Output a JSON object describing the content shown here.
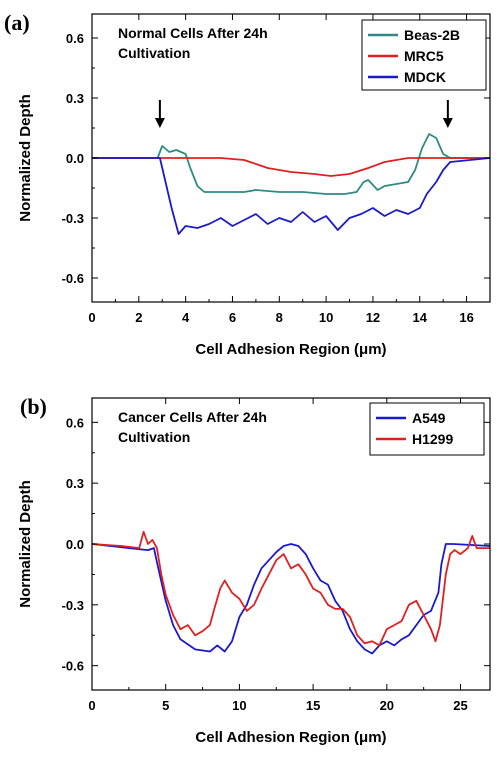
{
  "chart_data": [
    {
      "type": "line",
      "panel_label": "(a)",
      "annotation": [
        "Normal Cells After 24h",
        "Cultivation"
      ],
      "xlabel": "Cell Adhesion Region (μm)",
      "ylabel": "Normalized Depth",
      "xlim": [
        0,
        17
      ],
      "ylim": [
        -0.72,
        0.72
      ],
      "xticks": [
        "0",
        "2",
        "4",
        "6",
        "8",
        "10",
        "12",
        "14",
        "16"
      ],
      "yticks": [
        "0.6",
        "0.3",
        "0.0",
        "-0.3",
        "-0.6"
      ],
      "legend_position": "top-right",
      "arrows_x": [
        2.9,
        15.2
      ],
      "series": [
        {
          "name": "Beas-2B",
          "color": "#2e8b84",
          "points": [
            [
              0,
              0
            ],
            [
              2.8,
              0.0
            ],
            [
              3.0,
              0.06
            ],
            [
              3.3,
              0.03
            ],
            [
              3.6,
              0.04
            ],
            [
              4.0,
              0.02
            ],
            [
              4.2,
              -0.05
            ],
            [
              4.5,
              -0.14
            ],
            [
              4.8,
              -0.17
            ],
            [
              5.5,
              -0.17
            ],
            [
              6.5,
              -0.17
            ],
            [
              7.0,
              -0.16
            ],
            [
              8.0,
              -0.17
            ],
            [
              9.0,
              -0.17
            ],
            [
              10.0,
              -0.18
            ],
            [
              10.8,
              -0.18
            ],
            [
              11.3,
              -0.17
            ],
            [
              11.6,
              -0.12
            ],
            [
              11.8,
              -0.11
            ],
            [
              12.2,
              -0.16
            ],
            [
              12.5,
              -0.14
            ],
            [
              13.0,
              -0.13
            ],
            [
              13.5,
              -0.12
            ],
            [
              13.8,
              -0.06
            ],
            [
              14.1,
              0.05
            ],
            [
              14.4,
              0.12
            ],
            [
              14.7,
              0.1
            ],
            [
              15.0,
              0.02
            ],
            [
              15.3,
              0.0
            ],
            [
              17,
              0.0
            ]
          ]
        },
        {
          "name": "MRC5",
          "color": "#e02020",
          "points": [
            [
              0,
              0
            ],
            [
              4.5,
              0.0
            ],
            [
              5.5,
              0.0
            ],
            [
              6.5,
              -0.01
            ],
            [
              7.5,
              -0.05
            ],
            [
              8.5,
              -0.07
            ],
            [
              9.5,
              -0.08
            ],
            [
              10.2,
              -0.09
            ],
            [
              11.0,
              -0.08
            ],
            [
              11.8,
              -0.05
            ],
            [
              12.5,
              -0.02
            ],
            [
              13.5,
              0.0
            ],
            [
              17,
              0.0
            ]
          ]
        },
        {
          "name": "MDCK",
          "color": "#1a1acc",
          "points": [
            [
              0,
              0
            ],
            [
              2.9,
              0.0
            ],
            [
              3.1,
              -0.1
            ],
            [
              3.4,
              -0.25
            ],
            [
              3.7,
              -0.38
            ],
            [
              4.0,
              -0.34
            ],
            [
              4.5,
              -0.35
            ],
            [
              5.0,
              -0.33
            ],
            [
              5.5,
              -0.3
            ],
            [
              6.0,
              -0.34
            ],
            [
              6.5,
              -0.31
            ],
            [
              7.0,
              -0.28
            ],
            [
              7.5,
              -0.33
            ],
            [
              8.0,
              -0.3
            ],
            [
              8.5,
              -0.32
            ],
            [
              9.0,
              -0.27
            ],
            [
              9.5,
              -0.32
            ],
            [
              10.0,
              -0.29
            ],
            [
              10.5,
              -0.36
            ],
            [
              11.0,
              -0.3
            ],
            [
              11.5,
              -0.28
            ],
            [
              12.0,
              -0.25
            ],
            [
              12.5,
              -0.29
            ],
            [
              13.0,
              -0.26
            ],
            [
              13.5,
              -0.28
            ],
            [
              14.0,
              -0.25
            ],
            [
              14.3,
              -0.18
            ],
            [
              14.7,
              -0.12
            ],
            [
              15.0,
              -0.06
            ],
            [
              15.3,
              -0.02
            ],
            [
              17,
              0.0
            ]
          ]
        }
      ]
    },
    {
      "type": "line",
      "panel_label": "(b)",
      "annotation": [
        "Cancer Cells After 24h",
        "Cultivation"
      ],
      "xlabel": "Cell Adhesion Region (μm)",
      "ylabel": "Normalized Depth",
      "xlim": [
        0,
        27
      ],
      "ylim": [
        -0.72,
        0.72
      ],
      "xticks": [
        "0",
        "5",
        "10",
        "15",
        "20",
        "25"
      ],
      "yticks": [
        "0.6",
        "0.3",
        "0.0",
        "-0.3",
        "-0.6"
      ],
      "legend_position": "top-right",
      "series": [
        {
          "name": "A549",
          "color": "#1a1acc",
          "points": [
            [
              0,
              0
            ],
            [
              2.5,
              -0.02
            ],
            [
              3.8,
              -0.03
            ],
            [
              4.2,
              -0.02
            ],
            [
              4.5,
              -0.12
            ],
            [
              5.0,
              -0.28
            ],
            [
              5.5,
              -0.4
            ],
            [
              6.0,
              -0.47
            ],
            [
              7.0,
              -0.52
            ],
            [
              8.0,
              -0.53
            ],
            [
              8.5,
              -0.5
            ],
            [
              9.0,
              -0.53
            ],
            [
              9.5,
              -0.48
            ],
            [
              10.0,
              -0.36
            ],
            [
              10.5,
              -0.3
            ],
            [
              11.0,
              -0.2
            ],
            [
              11.5,
              -0.12
            ],
            [
              12.0,
              -0.08
            ],
            [
              12.5,
              -0.04
            ],
            [
              13.0,
              -0.01
            ],
            [
              13.5,
              0.0
            ],
            [
              14.0,
              -0.01
            ],
            [
              14.5,
              -0.05
            ],
            [
              15.0,
              -0.12
            ],
            [
              15.5,
              -0.18
            ],
            [
              16.0,
              -0.2
            ],
            [
              16.5,
              -0.28
            ],
            [
              17.0,
              -0.33
            ],
            [
              17.5,
              -0.42
            ],
            [
              18.0,
              -0.48
            ],
            [
              18.5,
              -0.52
            ],
            [
              19.0,
              -0.54
            ],
            [
              19.5,
              -0.5
            ],
            [
              20.0,
              -0.48
            ],
            [
              20.5,
              -0.5
            ],
            [
              21.0,
              -0.47
            ],
            [
              21.5,
              -0.45
            ],
            [
              22.0,
              -0.4
            ],
            [
              22.5,
              -0.35
            ],
            [
              23.0,
              -0.33
            ],
            [
              23.5,
              -0.24
            ],
            [
              23.7,
              -0.1
            ],
            [
              24.0,
              0.0
            ],
            [
              24.5,
              0.0
            ],
            [
              27,
              -0.01
            ]
          ]
        },
        {
          "name": "H1299",
          "color": "#e02020",
          "points": [
            [
              0,
              0
            ],
            [
              2.0,
              -0.01
            ],
            [
              3.2,
              -0.02
            ],
            [
              3.5,
              0.06
            ],
            [
              3.8,
              0.0
            ],
            [
              4.1,
              0.02
            ],
            [
              4.4,
              -0.02
            ],
            [
              4.7,
              -0.15
            ],
            [
              5.0,
              -0.25
            ],
            [
              5.5,
              -0.35
            ],
            [
              6.0,
              -0.42
            ],
            [
              6.5,
              -0.4
            ],
            [
              7.0,
              -0.45
            ],
            [
              7.5,
              -0.43
            ],
            [
              8.0,
              -0.4
            ],
            [
              8.3,
              -0.32
            ],
            [
              8.7,
              -0.22
            ],
            [
              9.0,
              -0.18
            ],
            [
              9.5,
              -0.24
            ],
            [
              10.0,
              -0.27
            ],
            [
              10.5,
              -0.33
            ],
            [
              11.0,
              -0.3
            ],
            [
              11.5,
              -0.22
            ],
            [
              12.0,
              -0.15
            ],
            [
              12.5,
              -0.08
            ],
            [
              13.0,
              -0.05
            ],
            [
              13.5,
              -0.12
            ],
            [
              14.0,
              -0.1
            ],
            [
              14.5,
              -0.15
            ],
            [
              15.0,
              -0.22
            ],
            [
              15.5,
              -0.24
            ],
            [
              16.0,
              -0.3
            ],
            [
              16.5,
              -0.32
            ],
            [
              17.0,
              -0.32
            ],
            [
              17.5,
              -0.36
            ],
            [
              18.0,
              -0.45
            ],
            [
              18.5,
              -0.49
            ],
            [
              19.0,
              -0.48
            ],
            [
              19.5,
              -0.5
            ],
            [
              20.0,
              -0.42
            ],
            [
              20.5,
              -0.4
            ],
            [
              21.0,
              -0.38
            ],
            [
              21.5,
              -0.3
            ],
            [
              22.0,
              -0.28
            ],
            [
              22.5,
              -0.35
            ],
            [
              23.0,
              -0.42
            ],
            [
              23.3,
              -0.48
            ],
            [
              23.6,
              -0.4
            ],
            [
              24.0,
              -0.15
            ],
            [
              24.3,
              -0.05
            ],
            [
              24.6,
              -0.03
            ],
            [
              25.0,
              -0.05
            ],
            [
              25.5,
              -0.02
            ],
            [
              25.8,
              0.04
            ],
            [
              26.1,
              -0.02
            ],
            [
              27,
              -0.02
            ]
          ]
        }
      ]
    }
  ]
}
